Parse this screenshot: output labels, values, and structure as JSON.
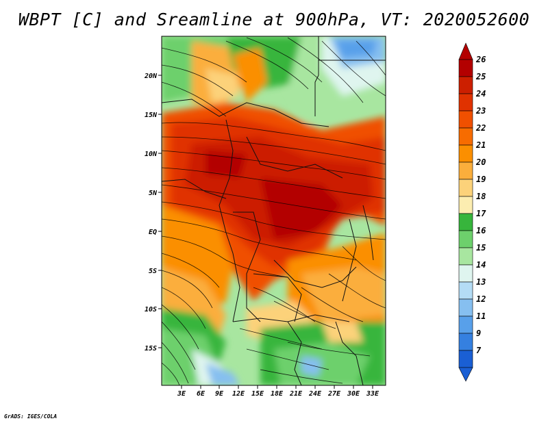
{
  "title": "WBPT [C] and Sreamline at 900hPa, VT: 2020052600",
  "credit": "GrADS: IGES/COLA",
  "lat_labels": [
    "20N",
    "15N",
    "10N",
    "5N",
    "EQ",
    "5S",
    "10S",
    "15S"
  ],
  "lon_labels": [
    "3E",
    "6E",
    "9E",
    "12E",
    "15E",
    "18E",
    "21E",
    "24E",
    "27E",
    "30E",
    "33E"
  ],
  "colorbar": {
    "levels": [
      "26",
      "25",
      "24",
      "23",
      "22",
      "21",
      "20",
      "19",
      "18",
      "17",
      "16",
      "15",
      "14",
      "13",
      "12",
      "11",
      "9",
      "7"
    ],
    "colors": [
      "#b30000",
      "#cc1f00",
      "#e03200",
      "#f05000",
      "#f76c00",
      "#fb8f00",
      "#fbae3c",
      "#fcd27a",
      "#fcedb0",
      "#37b53c",
      "#6dd06c",
      "#a8e6a0",
      "#dff5ef",
      "#b4dcf5",
      "#86bff0",
      "#58a0ea",
      "#3580e0",
      "#1a5fd4"
    ]
  },
  "legend_min_color": "#1a5fd4",
  "legend_max_color": "#b30000"
}
